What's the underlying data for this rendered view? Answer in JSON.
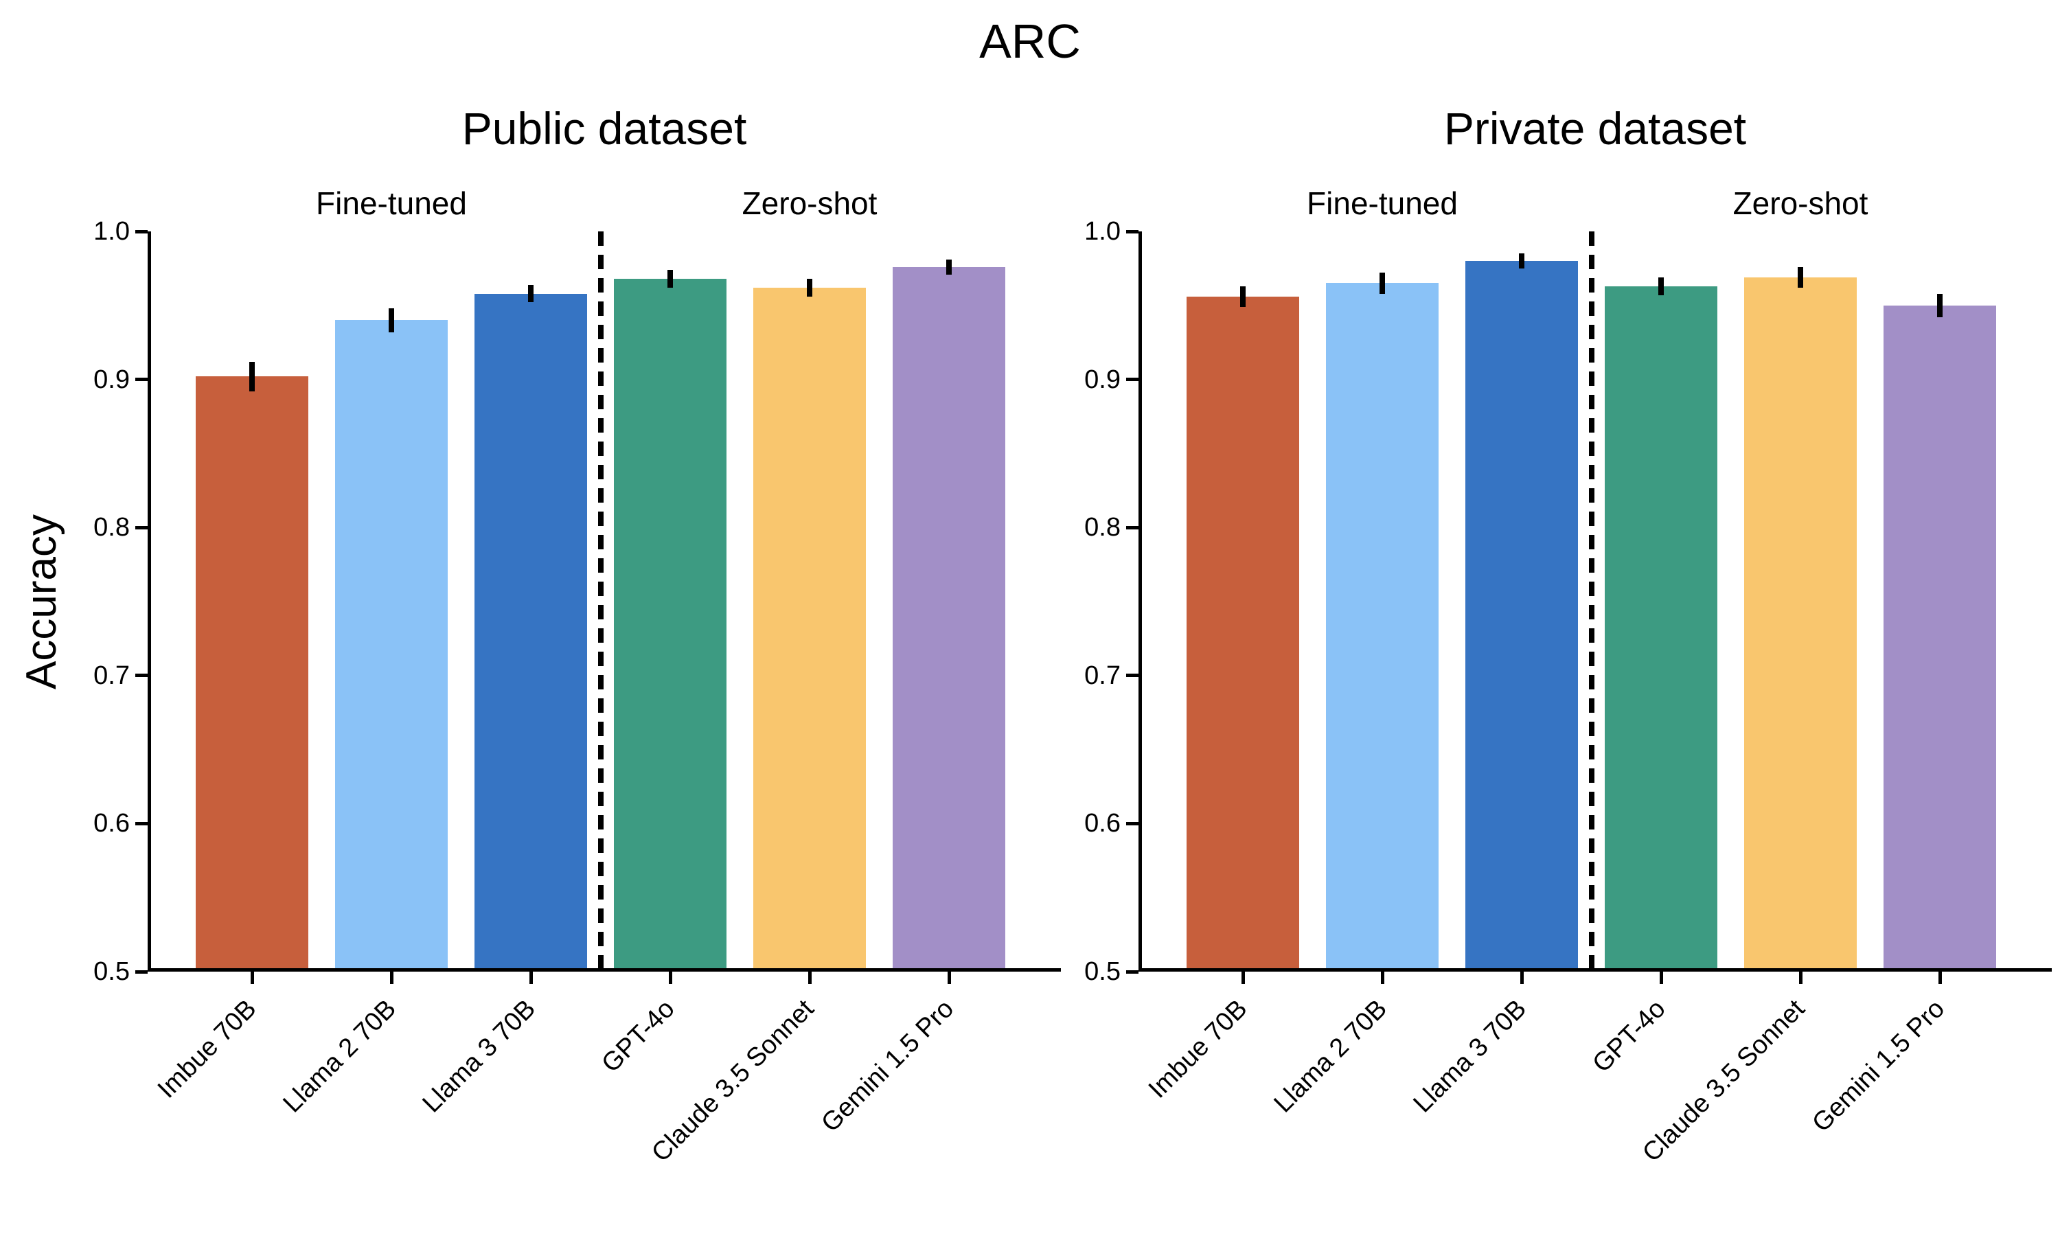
{
  "figure": {
    "title": "ARC",
    "ylabel": "Accuracy"
  },
  "chart_data": [
    {
      "type": "bar",
      "title": "Public dataset",
      "group_labels": [
        "Fine-tuned",
        "Zero-shot"
      ],
      "separator_after_index": 2,
      "categories": [
        "Imbue 70B",
        "Llama 2 70B",
        "Llama 3 70B",
        "GPT-4o",
        "Claude 3.5 Sonnet",
        "Gemini 1.5 Pro"
      ],
      "values": [
        0.902,
        0.94,
        0.958,
        0.968,
        0.962,
        0.976
      ],
      "errors": [
        0.01,
        0.008,
        0.006,
        0.006,
        0.006,
        0.005
      ],
      "bar_colors": [
        "#C75F3C",
        "#8AC2F7",
        "#3674C3",
        "#3D9B82",
        "#F9C66E",
        "#A28FC7"
      ],
      "ylabel": "Accuracy",
      "ylim": [
        0.5,
        1.0
      ],
      "yticks": [
        "1.0",
        "0.9",
        "0.8",
        "0.7",
        "0.6",
        "0.5"
      ],
      "grid": false,
      "legend": "none"
    },
    {
      "type": "bar",
      "title": "Private dataset",
      "group_labels": [
        "Fine-tuned",
        "Zero-shot"
      ],
      "separator_after_index": 2,
      "categories": [
        "Imbue 70B",
        "Llama 2 70B",
        "Llama 3 70B",
        "GPT-4o",
        "Claude 3.5 Sonnet",
        "Gemini 1.5 Pro"
      ],
      "values": [
        0.956,
        0.965,
        0.98,
        0.963,
        0.969,
        0.95
      ],
      "errors": [
        0.007,
        0.007,
        0.005,
        0.006,
        0.007,
        0.008
      ],
      "bar_colors": [
        "#C75F3C",
        "#8AC2F7",
        "#3674C3",
        "#3D9B82",
        "#F9C66E",
        "#A28FC7"
      ],
      "ylabel": "Accuracy",
      "ylim": [
        0.5,
        1.0
      ],
      "yticks": [
        "1.0",
        "0.9",
        "0.8",
        "0.7",
        "0.6",
        "0.5"
      ],
      "grid": false,
      "legend": "none"
    }
  ]
}
